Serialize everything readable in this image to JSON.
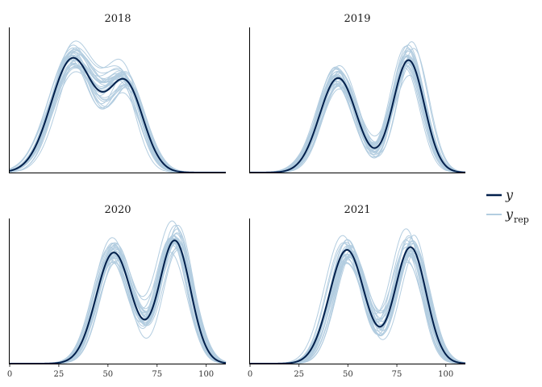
{
  "chart_data": {
    "type": "line",
    "kind": "posterior predictive density overlay (faceted)",
    "xlim": [
      0,
      110
    ],
    "x_ticks": [
      0,
      25,
      50,
      75,
      100
    ],
    "y_axis_labels": false,
    "grid": false,
    "legend_position": "right",
    "colors": {
      "y": "#011f4b",
      "yrep": "#b3cde0"
    },
    "legend": [
      {
        "key": "y",
        "label": "y",
        "subscript": ""
      },
      {
        "key": "yrep",
        "label": "y",
        "subscript": "rep"
      }
    ],
    "n_replicates": 30,
    "y_max": 1.0,
    "facets": [
      {
        "title": "2018",
        "y": {
          "components": [
            {
              "mu": 32,
              "sigma": 11,
              "w": 0.86
            },
            {
              "mu": 59,
              "sigma": 9,
              "w": 0.66
            }
          ]
        }
      },
      {
        "title": "2019",
        "y": {
          "components": [
            {
              "mu": 45,
              "sigma": 9.5,
              "w": 0.715
            },
            {
              "mu": 81,
              "sigma": 8,
              "w": 0.85
            }
          ]
        }
      },
      {
        "title": "2020",
        "y": {
          "components": [
            {
              "mu": 53,
              "sigma": 9,
              "w": 0.84
            },
            {
              "mu": 84,
              "sigma": 8,
              "w": 0.93
            }
          ]
        }
      },
      {
        "title": "2021",
        "y": {
          "components": [
            {
              "mu": 49.5,
              "sigma": 9,
              "w": 0.86
            },
            {
              "mu": 82,
              "sigma": 8,
              "w": 0.88
            }
          ]
        }
      }
    ]
  }
}
